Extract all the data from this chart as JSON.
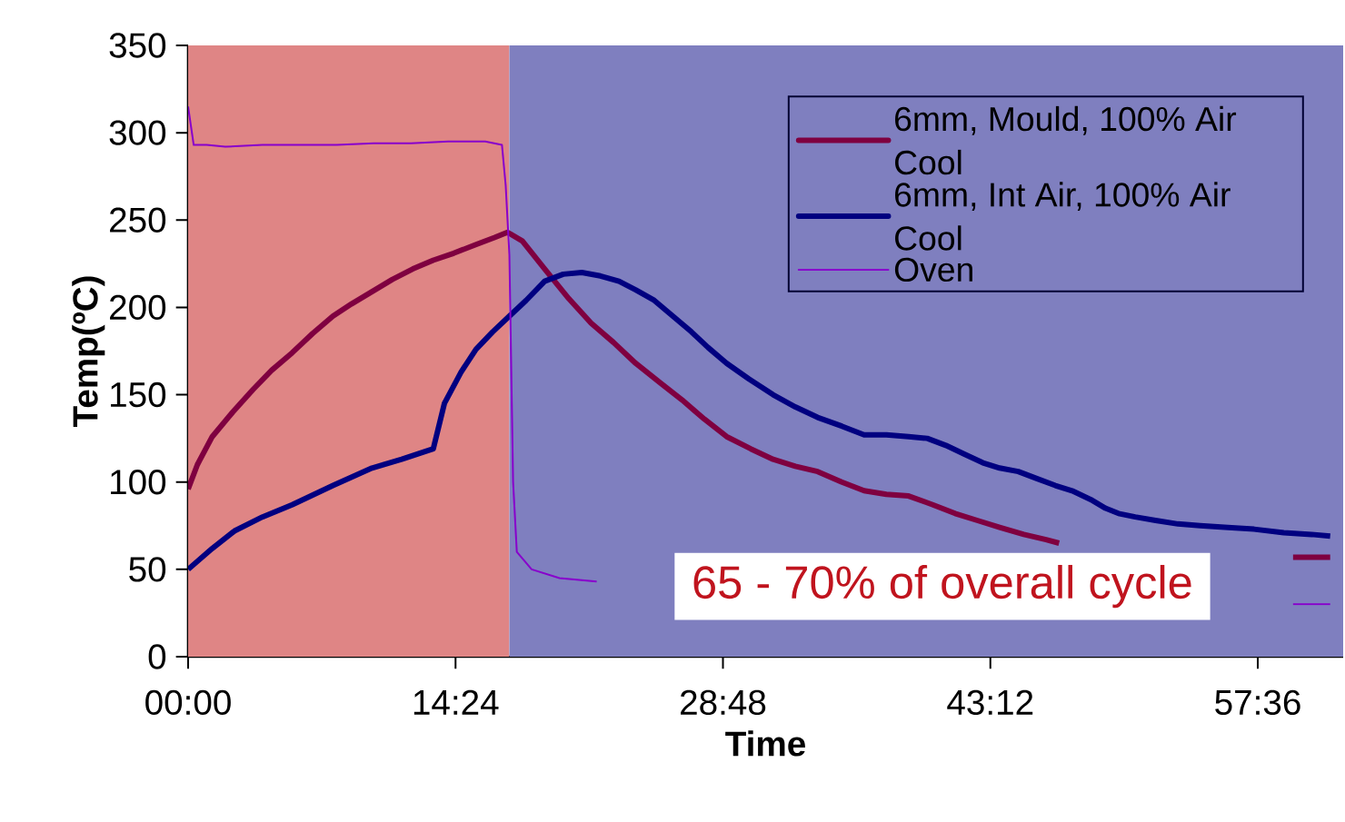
{
  "chart_data": {
    "type": "line",
    "xlabel": "Time",
    "ylabel": "Temp(ºC)",
    "xlim": [
      0,
      62.2
    ],
    "ylim": [
      0,
      350
    ],
    "xticks": [
      {
        "value": 0,
        "label": "00:00"
      },
      {
        "value": 14.4,
        "label": "14:24"
      },
      {
        "value": 28.8,
        "label": "28:48"
      },
      {
        "value": 43.2,
        "label": "43:12"
      },
      {
        "value": 57.6,
        "label": "57:36"
      }
    ],
    "yticks": [
      0,
      50,
      100,
      150,
      200,
      250,
      300,
      350
    ],
    "legend": "top right",
    "bands": [
      {
        "axis": "x",
        "from": 0,
        "to": 17.3,
        "color": "#df8585"
      },
      {
        "axis": "x",
        "from": 17.3,
        "to": 62.2,
        "color": "#7f7fbf"
      }
    ],
    "annotations": [
      "65 - 70% of overall cycle"
    ],
    "series": [
      {
        "name": "6mm, Mould, 100% Air Cool",
        "color": "#7f0040",
        "x": [
          0,
          0.5,
          1.3,
          2.4,
          3.5,
          4.5,
          5.6,
          6.7,
          7.8,
          8.8,
          9.9,
          11,
          12.1,
          13.2,
          14.3,
          15.5,
          16.5,
          17.2,
          18,
          19.2,
          20.5,
          21.7,
          22.9,
          24.1,
          25.4,
          26.6,
          27.8,
          29,
          30.3,
          31.5,
          32.7,
          33.9,
          35.2,
          36.4,
          37.6,
          38.8,
          40.1,
          41.3,
          42.5,
          43.7,
          45,
          46.2,
          46.9,
          47.5,
          58.8,
          59.5,
          60.5,
          61.5
        ],
        "values": [
          96,
          110,
          126,
          140,
          153,
          164,
          174,
          185,
          195,
          202,
          209,
          216,
          222,
          227,
          231,
          236,
          240,
          243,
          238,
          222,
          205,
          191,
          180,
          168,
          157,
          147,
          136,
          126,
          119,
          113,
          109,
          106,
          100,
          95,
          93,
          92,
          87,
          82,
          78,
          74,
          70,
          67,
          65,
          null,
          null,
          57,
          57,
          57
        ]
      },
      {
        "name": "6mm, Int Air, 100% Air Cool",
        "color": "#000080",
        "x": [
          0,
          1.3,
          2.5,
          4,
          5.6,
          7.8,
          9.9,
          11.5,
          13.2,
          13.8,
          14.7,
          15.5,
          16.4,
          17.3,
          18.2,
          19.2,
          20.2,
          21.2,
          22.2,
          23.2,
          24.1,
          25.1,
          26.1,
          27.1,
          28,
          29,
          30.2,
          31.5,
          32.7,
          33.9,
          35.2,
          36.4,
          37.6,
          38.8,
          39.8,
          40.8,
          41.8,
          42.8,
          43.7,
          44.7,
          45.7,
          46.7,
          47.6,
          48.6,
          49.4,
          50.1,
          51,
          52.1,
          53.3,
          54.5,
          56,
          57.4,
          59,
          60.5,
          61.5
        ],
        "values": [
          50,
          62,
          72,
          80,
          87,
          98,
          108,
          113,
          119,
          145,
          163,
          176,
          186,
          195,
          204,
          215,
          219,
          220,
          218,
          215,
          210,
          204,
          195,
          186,
          177,
          168,
          159,
          150,
          143,
          137,
          132,
          127,
          127,
          126,
          125,
          121,
          116,
          111,
          108,
          106,
          102,
          98,
          95,
          90,
          85,
          82,
          80,
          78,
          76,
          75,
          74,
          73,
          71,
          70,
          69
        ]
      },
      {
        "name": "Oven",
        "color": "#8800cc",
        "x": [
          0,
          0.3,
          1,
          2,
          4,
          6,
          8,
          10,
          12,
          14,
          16,
          16.9,
          17.1,
          17.3,
          17.5,
          17.7,
          18.5,
          20,
          22,
          22.4,
          58.8,
          59.5,
          60.5,
          61.5
        ],
        "values": [
          315,
          293,
          293,
          292,
          293,
          293,
          293,
          294,
          294,
          295,
          295,
          293,
          270,
          230,
          100,
          60,
          50,
          45,
          43,
          null,
          null,
          30,
          30,
          30
        ]
      }
    ]
  }
}
